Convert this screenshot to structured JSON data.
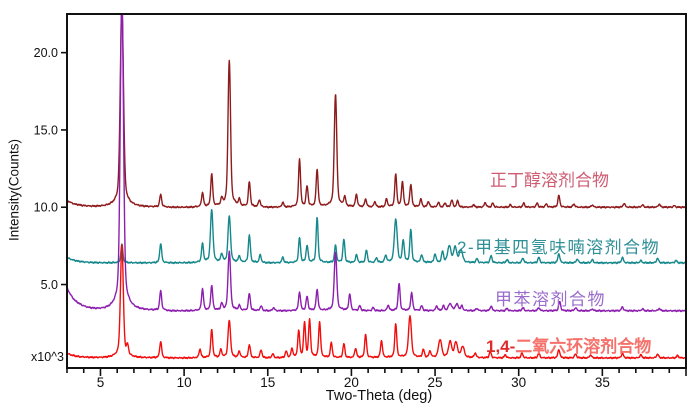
{
  "page": {
    "background": "#ffffff"
  },
  "axes": {
    "x_title": "Two-Theta (deg)",
    "y_title": "Intensity(Counts)",
    "y_scale_note": "x10^3"
  },
  "legend": {
    "entries": [
      {
        "text": "正丁醇溶剂合物",
        "color": "#ce5b72"
      },
      {
        "text": "2-甲基四氢呋喃溶剂合物",
        "color": "#2e8f96"
      },
      {
        "text": "甲苯溶剂合物",
        "color": "#9a6ccc"
      },
      {
        "prefix": "1,4-",
        "prefix_color": "#e02a2a",
        "text": "二氧六环溶剂合物",
        "color": "#f4726b"
      }
    ]
  },
  "chart_data": {
    "type": "line",
    "title": "",
    "xlabel": "Two-Theta (deg)",
    "ylabel": "Intensity(Counts)",
    "y_unit_multiplier": "x10^3",
    "xlim": [
      3,
      40
    ],
    "ylim": [
      -0.4,
      22.5
    ],
    "grid": false,
    "axis_color": "#111111",
    "x_minor_tick_step": 1,
    "x_major_ticks": [
      {
        "value": 5,
        "label": "5"
      },
      {
        "value": 10,
        "label": "10"
      },
      {
        "value": 15,
        "label": "15"
      },
      {
        "value": 20,
        "label": "20"
      },
      {
        "value": 25,
        "label": "25"
      },
      {
        "value": 30,
        "label": "30"
      },
      {
        "value": 35,
        "label": "35"
      }
    ],
    "y_major_ticks": [
      {
        "value": 5,
        "label": "5.0"
      },
      {
        "value": 10,
        "label": "10.0"
      },
      {
        "value": 15,
        "label": "15.0"
      },
      {
        "value": 20,
        "label": "20.0"
      }
    ],
    "series": [
      {
        "name": "n-butanol-solvate",
        "label": "正丁醇溶剂合物",
        "color": "#8e1b1b",
        "baseline": 10.0,
        "left_tail": 0.45,
        "default_sigma": 0.055,
        "peaks": [
          [
            6.28,
            13.0,
            0.09
          ],
          [
            8.6,
            0.8
          ],
          [
            11.1,
            0.9
          ],
          [
            11.65,
            2.1
          ],
          [
            12.25,
            0.4
          ],
          [
            12.7,
            9.5,
            0.07
          ],
          [
            13.3,
            0.4
          ],
          [
            13.9,
            1.6
          ],
          [
            14.5,
            0.45
          ],
          [
            15.9,
            0.3
          ],
          [
            16.9,
            3.1
          ],
          [
            17.35,
            1.3
          ],
          [
            17.95,
            2.4
          ],
          [
            19.05,
            7.3,
            0.07
          ],
          [
            19.6,
            0.6
          ],
          [
            20.3,
            0.8
          ],
          [
            20.85,
            0.5
          ],
          [
            21.4,
            0.35
          ],
          [
            22.1,
            0.5
          ],
          [
            22.65,
            2.1
          ],
          [
            23.05,
            1.6
          ],
          [
            23.55,
            1.45
          ],
          [
            24.15,
            0.5
          ],
          [
            24.6,
            0.35
          ],
          [
            25.2,
            0.3
          ],
          [
            25.6,
            0.25
          ],
          [
            26.0,
            0.45
          ],
          [
            26.35,
            0.4
          ],
          [
            27.3,
            0.15
          ],
          [
            28.0,
            0.3
          ],
          [
            28.45,
            0.25
          ],
          [
            29.5,
            0.15
          ],
          [
            30.3,
            0.25
          ],
          [
            31.1,
            0.25
          ],
          [
            31.65,
            0.2
          ],
          [
            32.4,
            0.75
          ],
          [
            33.3,
            0.2
          ],
          [
            34.4,
            0.15
          ],
          [
            36.3,
            0.25
          ],
          [
            37.4,
            0.15
          ],
          [
            38.4,
            0.2
          ],
          [
            39.3,
            0.1
          ]
        ]
      },
      {
        "name": "2-methyltetrahydrofuran-solvate",
        "label": "2-甲基四氢呋喃溶剂合物",
        "color": "#15888c",
        "baseline": 6.4,
        "left_tail": 0.35,
        "default_sigma": 0.055,
        "peaks": [
          [
            6.28,
            1.2
          ],
          [
            8.6,
            1.25
          ],
          [
            11.1,
            1.2
          ],
          [
            11.65,
            3.4,
            0.07
          ],
          [
            12.25,
            0.5
          ],
          [
            12.7,
            3.0,
            0.07
          ],
          [
            13.3,
            0.4
          ],
          [
            13.9,
            1.8
          ],
          [
            14.55,
            0.5
          ],
          [
            15.9,
            0.35
          ],
          [
            16.9,
            1.6
          ],
          [
            17.35,
            1.1
          ],
          [
            17.95,
            2.9
          ],
          [
            19.05,
            1.1
          ],
          [
            19.55,
            1.5
          ],
          [
            20.3,
            0.5
          ],
          [
            20.9,
            0.8
          ],
          [
            21.5,
            0.3
          ],
          [
            22.05,
            0.45
          ],
          [
            22.65,
            2.8,
            0.08
          ],
          [
            23.1,
            1.4
          ],
          [
            23.55,
            2.1
          ],
          [
            24.2,
            0.5
          ],
          [
            25.0,
            0.55
          ],
          [
            25.45,
            0.7
          ],
          [
            25.85,
            1.05,
            0.09
          ],
          [
            26.2,
            0.95,
            0.09
          ],
          [
            26.55,
            0.8,
            0.09
          ],
          [
            27.5,
            0.25
          ],
          [
            28.35,
            0.45
          ],
          [
            29.3,
            0.2
          ],
          [
            30.25,
            0.3
          ],
          [
            31.2,
            0.35
          ],
          [
            32.4,
            0.6
          ],
          [
            33.5,
            0.25
          ],
          [
            34.4,
            0.2
          ],
          [
            36.2,
            0.35
          ],
          [
            37.3,
            0.15
          ],
          [
            38.3,
            0.3
          ],
          [
            39.4,
            0.15
          ]
        ]
      },
      {
        "name": "toluene-solvate",
        "label": "甲苯溶剂合物",
        "color": "#8c1fae",
        "baseline": 3.3,
        "left_tail": 1.5,
        "default_sigma": 0.055,
        "peaks": [
          [
            6.28,
            20.5,
            0.09
          ],
          [
            8.6,
            1.25
          ],
          [
            11.1,
            1.4
          ],
          [
            11.65,
            1.6
          ],
          [
            12.25,
            0.4
          ],
          [
            12.7,
            3.85,
            0.07
          ],
          [
            13.3,
            0.3
          ],
          [
            13.9,
            1.1
          ],
          [
            14.6,
            0.3
          ],
          [
            15.35,
            0.2
          ],
          [
            16.9,
            1.2
          ],
          [
            17.35,
            0.9
          ],
          [
            17.95,
            1.35
          ],
          [
            19.05,
            3.8,
            0.07
          ],
          [
            19.9,
            1.05
          ],
          [
            20.5,
            0.3
          ],
          [
            21.3,
            0.2
          ],
          [
            22.2,
            0.35
          ],
          [
            22.85,
            1.75
          ],
          [
            23.6,
            1.15
          ],
          [
            24.2,
            0.3
          ],
          [
            25.1,
            0.3
          ],
          [
            25.5,
            0.3
          ],
          [
            25.9,
            0.45,
            0.09
          ],
          [
            26.3,
            0.4,
            0.09
          ],
          [
            26.6,
            0.3
          ],
          [
            27.5,
            0.15
          ],
          [
            28.35,
            0.3
          ],
          [
            29.3,
            0.15
          ],
          [
            30.25,
            0.2
          ],
          [
            31.2,
            0.2
          ],
          [
            32.45,
            0.6
          ],
          [
            33.4,
            0.2
          ],
          [
            34.4,
            0.12
          ],
          [
            36.2,
            0.25
          ],
          [
            37.4,
            0.12
          ],
          [
            38.4,
            0.15
          ]
        ]
      },
      {
        "name": "1-4-dioxane-solvate",
        "label": "1,4-二氧六环溶剂合物",
        "color": "#f20d0d",
        "baseline": 0.25,
        "left_tail": 0.3,
        "default_sigma": 0.055,
        "peaks": [
          [
            6.28,
            7.3,
            0.08
          ],
          [
            6.62,
            0.6
          ],
          [
            8.6,
            1.05
          ],
          [
            10.95,
            0.55
          ],
          [
            11.65,
            1.8
          ],
          [
            12.2,
            0.5
          ],
          [
            12.7,
            2.4,
            0.07
          ],
          [
            13.3,
            0.4
          ],
          [
            13.9,
            0.85
          ],
          [
            14.6,
            0.5
          ],
          [
            15.3,
            0.25
          ],
          [
            16.1,
            0.4
          ],
          [
            16.45,
            0.55
          ],
          [
            16.85,
            1.7
          ],
          [
            17.2,
            2.2
          ],
          [
            17.5,
            2.4
          ],
          [
            18.1,
            2.3
          ],
          [
            18.8,
            0.95
          ],
          [
            19.55,
            0.9
          ],
          [
            20.25,
            0.6
          ],
          [
            20.85,
            1.5
          ],
          [
            21.8,
            1.1
          ],
          [
            22.65,
            2.2
          ],
          [
            23.5,
            2.7,
            0.08
          ],
          [
            24.3,
            0.5
          ],
          [
            24.7,
            0.4
          ],
          [
            25.3,
            1.15,
            0.09
          ],
          [
            25.9,
            1.0,
            0.09
          ],
          [
            26.25,
            0.95,
            0.09
          ],
          [
            26.65,
            0.7,
            0.09
          ],
          [
            27.4,
            0.3
          ],
          [
            28.3,
            0.4
          ],
          [
            29.2,
            0.2
          ],
          [
            30.2,
            0.3
          ],
          [
            31.2,
            0.3
          ],
          [
            32.4,
            0.55
          ],
          [
            33.4,
            0.25
          ],
          [
            34.3,
            0.2
          ],
          [
            36.2,
            0.3
          ],
          [
            37.3,
            0.2
          ],
          [
            38.3,
            0.25
          ],
          [
            39.5,
            0.15
          ]
        ]
      }
    ]
  }
}
